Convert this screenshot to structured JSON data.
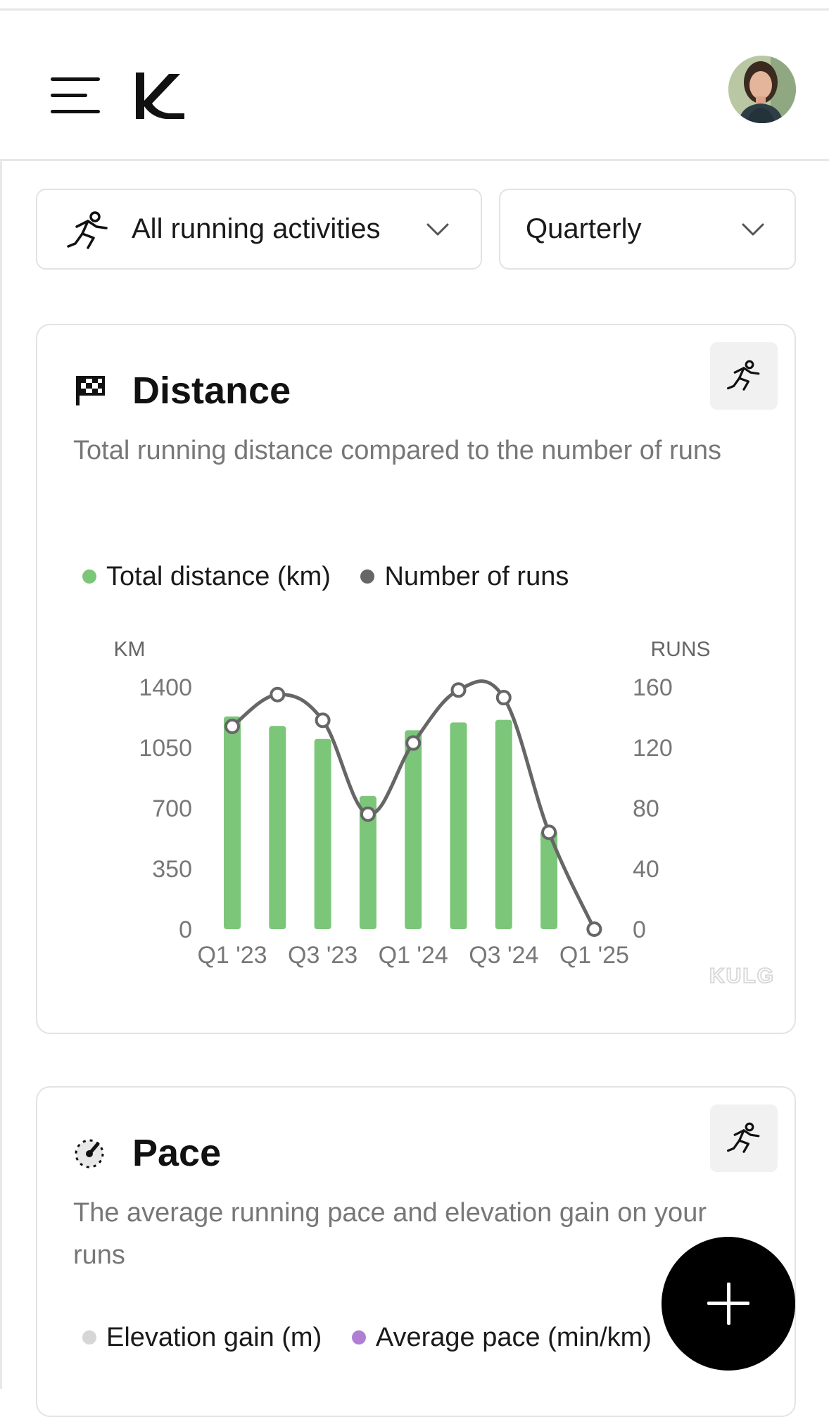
{
  "filters": {
    "activity": {
      "label": "All running activities",
      "icon": "runner-icon"
    },
    "period": {
      "label": "Quarterly"
    }
  },
  "distance_card": {
    "title": "Distance",
    "description": "Total running distance compared to the number of runs",
    "legend": [
      {
        "label": "Total distance (km)",
        "color": "#7cc67a"
      },
      {
        "label": "Number of runs",
        "color": "#666666"
      }
    ],
    "watermark": "KULG"
  },
  "pace_card": {
    "title": "Pace",
    "description": "The average running pace and elevation gain on your runs",
    "legend": [
      {
        "label": "Elevation gain (m)",
        "color": "#d6d6d6"
      },
      {
        "label": "Average pace (min/km)",
        "color": "#b07fd4"
      }
    ]
  },
  "chart_data": {
    "type": "bar",
    "categories": [
      "Q1 '23",
      "Q2 '23",
      "Q3 '23",
      "Q4 '23",
      "Q1 '24",
      "Q2 '24",
      "Q3 '24",
      "Q4 '24",
      "Q1 '25"
    ],
    "x_tick_labels": [
      "Q1 '23",
      "Q3 '23",
      "Q1 '24",
      "Q3 '24",
      "Q1 '25"
    ],
    "left_axis": {
      "label": "KM",
      "ticks": [
        0,
        350,
        700,
        1050,
        1400
      ],
      "range": [
        0,
        1400
      ]
    },
    "right_axis": {
      "label": "RUNS",
      "ticks": [
        0,
        40,
        80,
        120,
        160
      ],
      "range": [
        0,
        160
      ]
    },
    "series": [
      {
        "name": "Total distance (km)",
        "type": "bar",
        "axis": "left",
        "color": "#7cc67a",
        "values": [
          1230,
          1175,
          1100,
          770,
          1150,
          1195,
          1210,
          570,
          0
        ]
      },
      {
        "name": "Number of runs",
        "type": "line",
        "axis": "right",
        "color": "#666666",
        "values": [
          134,
          155,
          138,
          76,
          123,
          158,
          153,
          64,
          0
        ]
      }
    ],
    "grid": false,
    "legend_position": "top-left"
  }
}
